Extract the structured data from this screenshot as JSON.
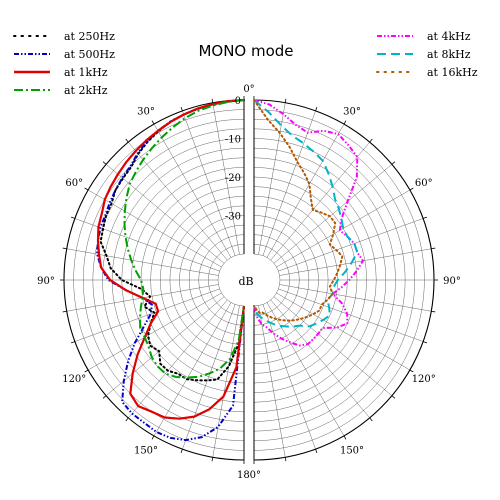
{
  "chart_data": {
    "type": "polar-line",
    "title": "MONO mode",
    "radial_unit": "dB",
    "radial_ticks": [
      "0",
      "-10",
      "-20",
      "-30"
    ],
    "r_range_db": [
      -40,
      0
    ],
    "angle_ticks": [
      "0°",
      "30°",
      "60°",
      "90°",
      "120°",
      "150°",
      "180°",
      "30°",
      "60°",
      "90°",
      "120°",
      "150°"
    ],
    "grid": true,
    "legend_left": "top-left",
    "legend_right": "top-right",
    "series": [
      {
        "name": "at 250Hz",
        "side": "left",
        "color": "#000000",
        "style": "dotted",
        "angles": [
          0,
          5,
          10,
          15,
          20,
          25,
          30,
          35,
          40,
          45,
          50,
          55,
          60,
          65,
          70,
          75,
          80,
          85,
          90,
          95,
          100,
          105,
          110,
          115,
          120,
          125,
          130,
          135,
          140,
          145,
          150,
          155,
          160,
          165,
          170,
          175,
          180
        ],
        "db": [
          0,
          -0.2,
          -0.4,
          -0.7,
          -1,
          -1.4,
          -2.2,
          -3,
          -4,
          -5.3,
          -5.7,
          -6,
          -7,
          -7.2,
          -7.8,
          -8.2,
          -10.5,
          -12,
          -15,
          -20,
          -22,
          -20,
          -22,
          -20,
          -18,
          -17,
          -18,
          -16,
          -16,
          -17,
          -17,
          -18,
          -19,
          -20,
          -24,
          -30,
          -40
        ]
      },
      {
        "name": "at 500Hz",
        "side": "left",
        "color": "#0000cc",
        "style": "dashdotdot",
        "angles": [
          0,
          5,
          10,
          15,
          20,
          25,
          30,
          35,
          40,
          45,
          50,
          55,
          60,
          65,
          70,
          75,
          80,
          85,
          90,
          95,
          100,
          105,
          110,
          115,
          120,
          125,
          130,
          135,
          140,
          145,
          150,
          155,
          160,
          165,
          170,
          175,
          180
        ],
        "db": [
          0,
          -0.2,
          -0.4,
          -0.7,
          -1,
          -1.4,
          -2,
          -2.8,
          -3.8,
          -5,
          -5.5,
          -6,
          -6.5,
          -7,
          -7,
          -7.5,
          -8,
          -9.5,
          -11.5,
          -16,
          -20,
          -22,
          -21,
          -18,
          -14,
          -10,
          -6,
          -2,
          -1.5,
          -1.5,
          -1.2,
          -1.5,
          -2.5,
          -4.5,
          -8,
          -14,
          -40
        ]
      },
      {
        "name": "at 1kHz",
        "side": "left",
        "color": "#e00000",
        "style": "solid",
        "angles": [
          0,
          5,
          10,
          15,
          20,
          25,
          30,
          35,
          40,
          45,
          50,
          55,
          60,
          65,
          70,
          75,
          80,
          85,
          90,
          95,
          100,
          105,
          110,
          115,
          120,
          125,
          130,
          135,
          140,
          145,
          150,
          155,
          160,
          165,
          170,
          175,
          180
        ],
        "db": [
          0,
          -0.1,
          -0.3,
          -0.6,
          -1,
          -1.5,
          -2,
          -2.5,
          -3,
          -3.5,
          -4,
          -4.5,
          -5,
          -6,
          -6.5,
          -7.5,
          -8.5,
          -9.5,
          -12,
          -16,
          -20,
          -23,
          -23,
          -20,
          -17,
          -13,
          -9,
          -5,
          -4,
          -5,
          -5.5,
          -7,
          -9,
          -12,
          -16,
          -24,
          -40
        ]
      },
      {
        "name": "at 2kHz",
        "side": "left",
        "color": "#00a000",
        "style": "dashdot",
        "angles": [
          0,
          5,
          10,
          15,
          20,
          25,
          30,
          35,
          40,
          45,
          50,
          55,
          60,
          65,
          70,
          75,
          80,
          85,
          90,
          95,
          100,
          105,
          110,
          115,
          120,
          125,
          130,
          135,
          140,
          145,
          150,
          155,
          160,
          165,
          170,
          175,
          180
        ],
        "db": [
          0,
          -0.3,
          -0.7,
          -1.2,
          -2,
          -3,
          -4,
          -5,
          -6,
          -7,
          -8,
          -9.5,
          -11,
          -12.5,
          -14,
          -15.5,
          -17,
          -18.5,
          -20,
          -20.5,
          -20,
          -19,
          -18,
          -17,
          -17,
          -16.5,
          -15.5,
          -15,
          -15,
          -16,
          -17.5,
          -19,
          -21,
          -23,
          -26,
          -31,
          -40
        ]
      }
    ],
    "series_right": [
      {
        "name": "at 4kHz",
        "side": "right",
        "color": "#ff00ff",
        "style": "dashdotdot",
        "angles": [
          0,
          5,
          10,
          15,
          20,
          25,
          30,
          35,
          40,
          45,
          50,
          55,
          60,
          65,
          70,
          75,
          80,
          85,
          90,
          95,
          100,
          105,
          110,
          115,
          120,
          125,
          130,
          135,
          140,
          145,
          150,
          155,
          160,
          165,
          170,
          175,
          180
        ],
        "db": [
          0,
          -1,
          -3,
          -5,
          -6,
          -4,
          -3,
          -4,
          -5,
          -9,
          -15,
          -19,
          -21,
          -20,
          -19,
          -19,
          -18,
          -20,
          -22,
          -24,
          -26,
          -23,
          -21,
          -20,
          -22,
          -25,
          -25,
          -25,
          -25,
          -26,
          -28,
          -30,
          -32,
          -34,
          -35,
          -37,
          -40
        ]
      },
      {
        "name": "at 8kHz",
        "side": "right",
        "color": "#00b4c8",
        "style": "dashed",
        "angles": [
          0,
          5,
          10,
          15,
          20,
          25,
          30,
          35,
          40,
          45,
          50,
          55,
          60,
          65,
          70,
          75,
          80,
          85,
          90,
          95,
          100,
          105,
          110,
          115,
          120,
          125,
          130,
          135,
          140,
          145,
          150,
          155,
          160,
          165,
          170,
          175,
          180
        ],
        "db": [
          0,
          -3,
          -6,
          -8,
          -9,
          -10,
          -11,
          -13,
          -15,
          -17,
          -18,
          -19,
          -20,
          -20,
          -19,
          -19,
          -21,
          -23,
          -25,
          -26,
          -26,
          -27,
          -26,
          -25,
          -26,
          -27,
          -28,
          -30,
          -31,
          -32,
          -33,
          -34,
          -35,
          -36,
          -37,
          -38,
          -40
        ]
      },
      {
        "name": "at 16kHz",
        "side": "right",
        "color": "#b35900",
        "style": "dotted",
        "angles": [
          0,
          5,
          10,
          15,
          20,
          25,
          30,
          35,
          40,
          45,
          50,
          55,
          60,
          65,
          70,
          75,
          80,
          85,
          90,
          95,
          100,
          105,
          110,
          115,
          120,
          125,
          130,
          135,
          140,
          145,
          150,
          155,
          160,
          165,
          170,
          175,
          180
        ],
        "db": [
          0,
          -5,
          -8,
          -11,
          -14,
          -16,
          -18,
          -21,
          -23,
          -22,
          -21,
          -21,
          -23,
          -25,
          -24,
          -23,
          -24,
          -25,
          -26,
          -27,
          -26,
          -27,
          -28,
          -28,
          -29,
          -30,
          -31,
          -32,
          -33,
          -34,
          -35,
          -36,
          -37,
          -38,
          -38,
          -39,
          -40
        ]
      }
    ]
  }
}
